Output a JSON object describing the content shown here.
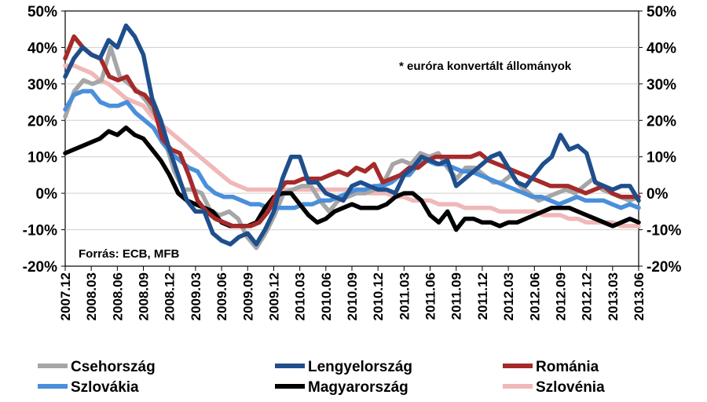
{
  "chart_data": {
    "type": "line",
    "annotation": "* euróra konvertált állományok",
    "source": "Forrás: ECB, MFB",
    "ylim": [
      -20,
      50
    ],
    "y_ticks": [
      -20,
      -10,
      0,
      10,
      20,
      30,
      40,
      50
    ],
    "y_tick_labels": [
      "-20%",
      "-10%",
      "0%",
      "10%",
      "20%",
      "30%",
      "40%",
      "50%"
    ],
    "x_labels": [
      "2007.12",
      "2008.03",
      "2008.06",
      "2008.09",
      "2008.12",
      "2009.03",
      "2009.06",
      "2009.09",
      "2009.12",
      "2010.03",
      "2010.06",
      "2010.09",
      "2010.12",
      "2011.03",
      "2011.06",
      "2011.09",
      "2011.12",
      "2012.03",
      "2012.06",
      "2012.09",
      "2012.12",
      "2013.03",
      "2013.06"
    ],
    "series": [
      {
        "name": "Csehország",
        "color": "#a6a6a6",
        "values": [
          21,
          28,
          31,
          30,
          31,
          40,
          32,
          30,
          28,
          25,
          21,
          14,
          6,
          1,
          1,
          0,
          -5,
          -6,
          -5,
          -7,
          -12,
          -15,
          -11,
          -6,
          0,
          1,
          2,
          2,
          -2,
          -5,
          -2,
          -1,
          0,
          0,
          1,
          3,
          8,
          9,
          8,
          11,
          10,
          11,
          7,
          4,
          7,
          7,
          5,
          3,
          3,
          5,
          2,
          0,
          -2,
          -1,
          0,
          1,
          0,
          2,
          4,
          1,
          0,
          -1,
          -2,
          -1
        ]
      },
      {
        "name": "Lengyelország",
        "color": "#1f4e8c",
        "values": [
          32,
          37,
          40,
          38,
          37,
          42,
          40,
          46,
          43,
          38,
          26,
          20,
          12,
          5,
          -2,
          -5,
          -5,
          -11,
          -13,
          -14,
          -12,
          -11,
          -14,
          -10,
          -5,
          4,
          10,
          10,
          3,
          3,
          0,
          -1,
          -2,
          2,
          3,
          2,
          1,
          1,
          0,
          5,
          7,
          10,
          9,
          8,
          9,
          2,
          4,
          6,
          8,
          10,
          11,
          7,
          3,
          2,
          5,
          8,
          10,
          16,
          12,
          13,
          11,
          3,
          2,
          1,
          2,
          2,
          -2
        ]
      },
      {
        "name": "Románia",
        "color": "#a52a2a",
        "values": [
          37,
          43,
          40,
          38,
          37,
          32,
          31,
          32,
          28,
          27,
          24,
          15,
          12,
          11,
          5,
          -2,
          -5,
          -7,
          -8,
          -9,
          -9,
          -9,
          -8,
          -5,
          0,
          3,
          3,
          4,
          4,
          4,
          5,
          6,
          5,
          7,
          6,
          8,
          3,
          4,
          5,
          7,
          7,
          9,
          10,
          10,
          10,
          10,
          10,
          11,
          9,
          8,
          7,
          6,
          5,
          4,
          3,
          2,
          2,
          2,
          1,
          0,
          1,
          2,
          0,
          -1,
          -1,
          -1
        ]
      },
      {
        "name": "Szlovákia",
        "color": "#4a8fdb",
        "values": [
          23,
          27,
          28,
          28,
          25,
          24,
          24,
          25,
          22,
          20,
          18,
          14,
          11,
          9,
          7,
          6,
          2,
          0,
          -1,
          -1,
          -2,
          -3,
          -3,
          -4,
          -4,
          -4,
          -4,
          -3,
          -3,
          -2,
          -2,
          -1,
          0,
          1,
          1,
          2,
          2,
          3,
          5,
          5,
          8,
          9,
          8,
          8,
          7,
          6,
          6,
          5,
          4,
          3,
          2,
          1,
          0,
          -1,
          -1,
          -2,
          -3,
          -2,
          -1,
          -2,
          -2,
          -2,
          -3,
          -4,
          -3,
          -4
        ]
      },
      {
        "name": "Magyarország",
        "color": "#000000",
        "values": [
          11,
          12,
          13,
          14,
          15,
          17,
          16,
          18,
          16,
          15,
          12,
          9,
          5,
          0,
          -2,
          -3,
          -4,
          -5,
          -8,
          -9,
          -9,
          -9,
          -8,
          -4,
          -1,
          0,
          0,
          -3,
          -6,
          -8,
          -7,
          -5,
          -4,
          -3,
          -4,
          -4,
          -4,
          -3,
          -1,
          0,
          0,
          -2,
          -6,
          -8,
          -5,
          -10,
          -7,
          -7,
          -8,
          -8,
          -9,
          -8,
          -8,
          -7,
          -6,
          -5,
          -4,
          -4,
          -4,
          -5,
          -6,
          -7,
          -8,
          -9,
          -8,
          -7,
          -8
        ]
      },
      {
        "name": "Szlovénia",
        "color": "#f0b8b8",
        "values": [
          35,
          35,
          34,
          33,
          31,
          30,
          28,
          26,
          25,
          24,
          21,
          19,
          17,
          15,
          13,
          11,
          9,
          7,
          5,
          3,
          2,
          1,
          1,
          1,
          1,
          1,
          1,
          1,
          1,
          1,
          1,
          1,
          1,
          1,
          1,
          0,
          0,
          0,
          -1,
          -1,
          -2,
          -2,
          -2,
          -3,
          -3,
          -3,
          -4,
          -4,
          -4,
          -4,
          -5,
          -5,
          -5,
          -5,
          -5,
          -6,
          -6,
          -6,
          -7,
          -7,
          -8,
          -8,
          -8,
          -8,
          -9,
          -9,
          -9
        ]
      }
    ]
  }
}
